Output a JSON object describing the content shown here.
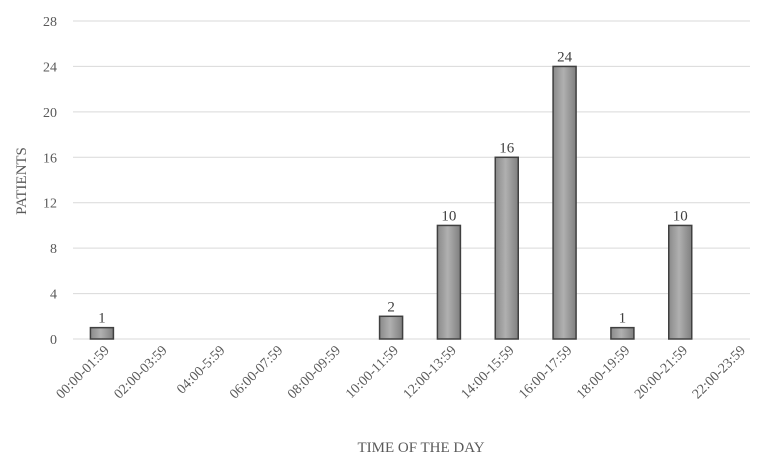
{
  "chart_data": {
    "type": "bar",
    "title": "",
    "xlabel": "TIME OF THE DAY",
    "ylabel": "PATIENTS",
    "categories": [
      "00:00-01:59",
      "02:00-03:59",
      "04:00-5:59",
      "06:00-07:59",
      "08:00-09:59",
      "10:00-11:59",
      "12:00-13:59",
      "14:00-15:59",
      "16:00-17:59",
      "18:00-19:59",
      "20:00-21:59",
      "22:00-23:59"
    ],
    "values": [
      1,
      0,
      0,
      0,
      0,
      2,
      10,
      16,
      24,
      1,
      10,
      0
    ],
    "data_labels": [
      "1",
      "",
      "",
      "",
      "",
      "2",
      "10",
      "16",
      "24",
      "1",
      "10",
      ""
    ],
    "ylim": [
      0,
      28
    ],
    "yticks": [
      0,
      4,
      8,
      12,
      16,
      20,
      24,
      28
    ],
    "grid": true,
    "legend": "none",
    "colors": {
      "bar_fill": "#a6a6a6",
      "bar_stroke": "#404040",
      "gridline": "#d9d9d9",
      "axis_text": "#595959",
      "data_label": "#404040"
    }
  }
}
